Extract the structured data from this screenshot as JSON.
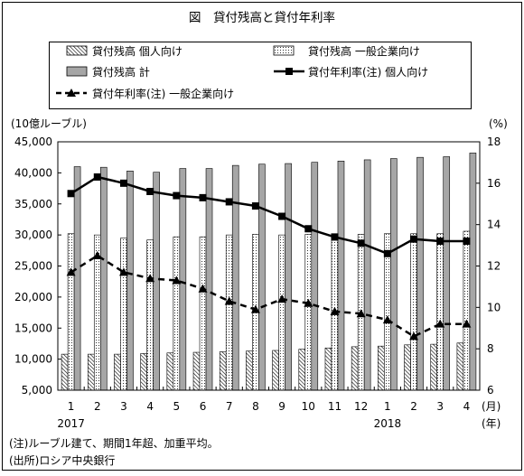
{
  "chart_data": {
    "type": "bar",
    "title": "図　貸付残高と貸付年利率",
    "categories": [
      "1",
      "2",
      "3",
      "4",
      "5",
      "6",
      "7",
      "8",
      "9",
      "10",
      "11",
      "12",
      "1",
      "2",
      "3",
      "4"
    ],
    "x_unit": "(月)",
    "year_unit": "(年)",
    "years": [
      {
        "label": "2017",
        "index": 0
      },
      {
        "label": "2018",
        "index": 12
      }
    ],
    "left_axis": {
      "label": "(10億ルーブル)",
      "range": [
        5000,
        45000
      ],
      "ticks": [
        5000,
        10000,
        15000,
        20000,
        25000,
        30000,
        35000,
        40000,
        45000
      ],
      "tick_labels": [
        "5,000",
        "10,000",
        "15,000",
        "20,000",
        "25,000",
        "30,000",
        "35,000",
        "40,000",
        "45,000"
      ]
    },
    "right_axis": {
      "label": "(%)",
      "range": [
        6,
        18
      ],
      "ticks": [
        6,
        8,
        10,
        12,
        14,
        16,
        18
      ],
      "tick_labels": [
        "6",
        "8",
        "10",
        "12",
        "14",
        "16",
        "18"
      ]
    },
    "series": [
      {
        "name": "貸付残高 個人向け",
        "kind": "bar",
        "axis": "left",
        "style": "hatched",
        "values": [
          10800,
          10800,
          10800,
          10900,
          11000,
          11100,
          11200,
          11300,
          11400,
          11600,
          11800,
          12000,
          12100,
          12300,
          12400,
          12600
        ]
      },
      {
        "name": "貸付残高 一般企業向け",
        "kind": "bar",
        "axis": "left",
        "style": "dotted",
        "values": [
          30200,
          30000,
          29500,
          29200,
          29700,
          29700,
          30000,
          30100,
          30000,
          30100,
          30200,
          30100,
          30200,
          30200,
          30200,
          30600
        ]
      },
      {
        "name": "貸付残高 計",
        "kind": "bar",
        "axis": "left",
        "style": "gray",
        "values": [
          41000,
          40900,
          40300,
          40100,
          40700,
          40700,
          41200,
          41400,
          41500,
          41700,
          41900,
          42100,
          42300,
          42500,
          42600,
          43200
        ]
      },
      {
        "name": "貸付年利率(注) 個人向け",
        "kind": "line",
        "axis": "right",
        "style": "solid-square",
        "values": [
          15.5,
          16.3,
          16.0,
          15.6,
          15.4,
          15.3,
          15.1,
          14.9,
          14.4,
          13.8,
          13.4,
          13.1,
          12.6,
          13.3,
          13.2,
          13.2
        ]
      },
      {
        "name": "貸付年利率(注) 一般企業向け",
        "kind": "line",
        "axis": "right",
        "style": "dashed-triangle",
        "values": [
          11.7,
          12.5,
          11.7,
          11.4,
          11.3,
          10.9,
          10.3,
          9.9,
          10.4,
          10.2,
          9.8,
          9.7,
          9.4,
          8.6,
          9.2,
          9.2
        ]
      }
    ],
    "legend_placement": "top",
    "grid": false
  },
  "footnotes": {
    "note": "(注)ルーブル建て、期間1年超、加重平均。",
    "source": "(出所)ロシア中央銀行"
  },
  "colors": {
    "gray_bar": "#a6a6a6",
    "line": "#000000",
    "frame": "#000000",
    "background": "#ffffff"
  }
}
